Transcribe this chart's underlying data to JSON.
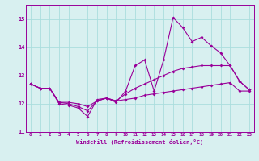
{
  "xlabel": "Windchill (Refroidissement éolien,°C)",
  "x": [
    0,
    1,
    2,
    3,
    4,
    5,
    6,
    7,
    8,
    9,
    10,
    11,
    12,
    13,
    14,
    15,
    16,
    17,
    18,
    19,
    20,
    21,
    22,
    23
  ],
  "line_spiky": [
    12.7,
    12.55,
    12.55,
    12.0,
    11.95,
    11.85,
    11.55,
    12.15,
    12.2,
    12.05,
    12.45,
    13.35,
    13.55,
    12.45,
    13.55,
    15.05,
    14.7,
    14.2,
    14.35,
    14.05,
    13.8,
    13.35,
    12.8,
    12.5
  ],
  "line_upper": [
    12.7,
    12.55,
    12.55,
    12.05,
    12.0,
    11.9,
    11.75,
    12.1,
    12.2,
    12.1,
    12.35,
    12.55,
    12.7,
    12.85,
    13.0,
    13.15,
    13.25,
    13.3,
    13.35,
    13.35,
    13.35,
    13.35,
    12.8,
    12.5
  ],
  "line_lower": [
    12.7,
    12.55,
    12.55,
    12.05,
    12.05,
    12.0,
    11.9,
    12.1,
    12.2,
    12.1,
    12.15,
    12.2,
    12.3,
    12.35,
    12.4,
    12.45,
    12.5,
    12.55,
    12.6,
    12.65,
    12.7,
    12.75,
    12.45,
    12.45
  ],
  "line_color": "#990099",
  "bg_color": "#d8f0f0",
  "grid_color": "#aadddd",
  "ylim": [
    11.0,
    15.5
  ],
  "yticks": [
    11,
    12,
    13,
    14,
    15
  ],
  "xticks": [
    0,
    1,
    2,
    3,
    4,
    5,
    6,
    7,
    8,
    9,
    10,
    11,
    12,
    13,
    14,
    15,
    16,
    17,
    18,
    19,
    20,
    21,
    22,
    23
  ]
}
